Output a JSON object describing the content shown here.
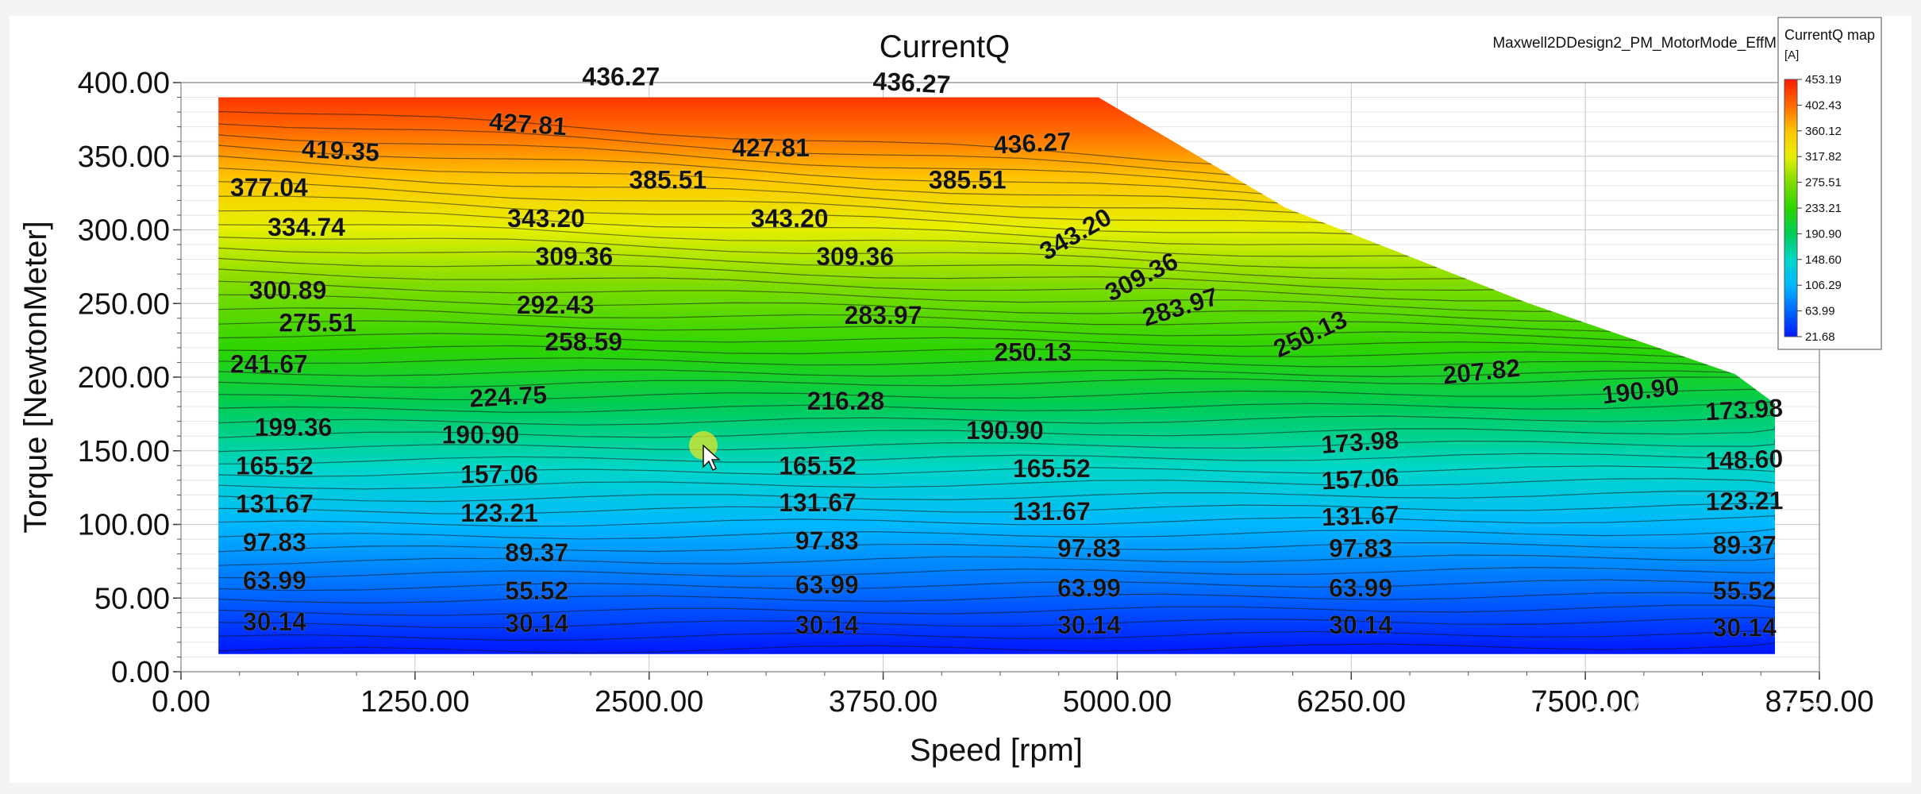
{
  "chart_data": {
    "type": "contour",
    "title": "CurrentQ",
    "design_label": "Maxwell2DDesign2_PM_MotorMode_EffM",
    "xlabel": "Speed [rpm]",
    "ylabel": "Torque [NewtonMeter]",
    "xlim": [
      0,
      8750
    ],
    "ylim": [
      0,
      400
    ],
    "x_ticks": [
      "0.00",
      "1250.00",
      "2500.00",
      "3750.00",
      "5000.00",
      "6250.00",
      "7500.00",
      "8750.00"
    ],
    "y_ticks": [
      "0.00",
      "50.00",
      "100.00",
      "150.00",
      "200.00",
      "250.00",
      "300.00",
      "350.00",
      "400.00"
    ],
    "grid": true,
    "legend": {
      "title": "CurrentQ map",
      "unit": "[A]",
      "placement": "top-right",
      "levels": [
        "453.19",
        "402.43",
        "360.12",
        "317.82",
        "275.51",
        "233.21",
        "190.90",
        "148.60",
        "106.29",
        "63.99",
        "21.68"
      ],
      "colors": [
        "#ff1a00",
        "#ff6a00",
        "#ffc400",
        "#e6f000",
        "#7fdc00",
        "#2ed400",
        "#00cc55",
        "#00d6c8",
        "#00b8ff",
        "#0066ff",
        "#0018ff"
      ]
    },
    "value_range": [
      21.68,
      453.19
    ],
    "boundary": [
      {
        "speed": 200,
        "torque": 390
      },
      {
        "speed": 4900,
        "torque": 390
      },
      {
        "speed": 5900,
        "torque": 315
      },
      {
        "speed": 7200,
        "torque": 250
      },
      {
        "speed": 8300,
        "torque": 202
      },
      {
        "speed": 9550,
        "torque": 182
      },
      {
        "speed": 9550,
        "torque": 12
      },
      {
        "speed": 200,
        "torque": 12
      }
    ],
    "contour_labels": [
      {
        "text": "436.27",
        "speed": 2350,
        "torque": 398,
        "angle": 0
      },
      {
        "text": "436.27",
        "speed": 3900,
        "torque": 394,
        "angle": 3
      },
      {
        "text": "427.81",
        "speed": 1850,
        "torque": 366,
        "angle": 4
      },
      {
        "text": "419.35",
        "speed": 850,
        "torque": 348,
        "angle": 3
      },
      {
        "text": "427.81",
        "speed": 3150,
        "torque": 350,
        "angle": 0
      },
      {
        "text": "436.27",
        "speed": 4550,
        "torque": 353,
        "angle": -3
      },
      {
        "text": "377.04",
        "speed": 470,
        "torque": 323,
        "angle": 0
      },
      {
        "text": "385.51",
        "speed": 2600,
        "torque": 328,
        "angle": 0
      },
      {
        "text": "385.51",
        "speed": 4200,
        "torque": 328,
        "angle": 0
      },
      {
        "text": "334.74",
        "speed": 670,
        "torque": 296,
        "angle": 0
      },
      {
        "text": "343.20",
        "speed": 1950,
        "torque": 302,
        "angle": 0
      },
      {
        "text": "343.20",
        "speed": 3250,
        "torque": 302,
        "angle": 0
      },
      {
        "text": "343.20",
        "speed": 4800,
        "torque": 292,
        "angle": -30
      },
      {
        "text": "309.36",
        "speed": 2100,
        "torque": 276,
        "angle": 0
      },
      {
        "text": "309.36",
        "speed": 3600,
        "torque": 276,
        "angle": 0
      },
      {
        "text": "309.36",
        "speed": 5150,
        "torque": 263,
        "angle": -27
      },
      {
        "text": "300.89",
        "speed": 570,
        "torque": 253,
        "angle": 0
      },
      {
        "text": "292.43",
        "speed": 2000,
        "torque": 243,
        "angle": 0
      },
      {
        "text": "283.97",
        "speed": 3750,
        "torque": 236,
        "angle": 0
      },
      {
        "text": "283.97",
        "speed": 5350,
        "torque": 242,
        "angle": -17
      },
      {
        "text": "275.51",
        "speed": 730,
        "torque": 231,
        "angle": 0
      },
      {
        "text": "258.59",
        "speed": 2150,
        "torque": 218,
        "angle": 0
      },
      {
        "text": "250.13",
        "speed": 4550,
        "torque": 211,
        "angle": 0
      },
      {
        "text": "250.13",
        "speed": 6050,
        "torque": 224,
        "angle": -25
      },
      {
        "text": "241.67",
        "speed": 470,
        "torque": 203,
        "angle": 0
      },
      {
        "text": "207.82",
        "speed": 6950,
        "torque": 198,
        "angle": -6
      },
      {
        "text": "190.90",
        "speed": 7800,
        "torque": 185,
        "angle": -7
      },
      {
        "text": "224.75",
        "speed": 1750,
        "torque": 181,
        "angle": -3
      },
      {
        "text": "216.28",
        "speed": 3550,
        "torque": 178,
        "angle": 0
      },
      {
        "text": "173.98",
        "speed": 8350,
        "torque": 172,
        "angle": -3
      },
      {
        "text": "199.36",
        "speed": 600,
        "torque": 160,
        "angle": 0
      },
      {
        "text": "190.90",
        "speed": 1600,
        "torque": 155,
        "angle": 0
      },
      {
        "text": "190.90",
        "speed": 4400,
        "torque": 158,
        "angle": 0
      },
      {
        "text": "173.98",
        "speed": 6300,
        "torque": 150,
        "angle": -4
      },
      {
        "text": "165.52",
        "speed": 500,
        "torque": 134,
        "angle": 0
      },
      {
        "text": "157.06",
        "speed": 1700,
        "torque": 128,
        "angle": 0
      },
      {
        "text": "165.52",
        "speed": 3400,
        "torque": 134,
        "angle": 0
      },
      {
        "text": "165.52",
        "speed": 4650,
        "torque": 132,
        "angle": 0
      },
      {
        "text": "157.06",
        "speed": 6300,
        "torque": 125,
        "angle": -3
      },
      {
        "text": "148.60",
        "speed": 8350,
        "torque": 138,
        "angle": -2
      },
      {
        "text": "131.67",
        "speed": 500,
        "torque": 108,
        "angle": 0
      },
      {
        "text": "123.21",
        "speed": 1700,
        "torque": 102,
        "angle": 0
      },
      {
        "text": "131.67",
        "speed": 3400,
        "torque": 109,
        "angle": 0
      },
      {
        "text": "131.67",
        "speed": 4650,
        "torque": 103,
        "angle": 0
      },
      {
        "text": "131.67",
        "speed": 6300,
        "torque": 100,
        "angle": -2
      },
      {
        "text": "123.21",
        "speed": 8350,
        "torque": 110,
        "angle": -1
      },
      {
        "text": "97.83",
        "speed": 500,
        "torque": 82,
        "angle": 0
      },
      {
        "text": "89.37",
        "speed": 1900,
        "torque": 75,
        "angle": 0
      },
      {
        "text": "97.83",
        "speed": 3450,
        "torque": 83,
        "angle": 0
      },
      {
        "text": "97.83",
        "speed": 4850,
        "torque": 78,
        "angle": 0
      },
      {
        "text": "97.83",
        "speed": 6300,
        "torque": 78,
        "angle": 0
      },
      {
        "text": "89.37",
        "speed": 8350,
        "torque": 80,
        "angle": 0
      },
      {
        "text": "63.99",
        "speed": 500,
        "torque": 56,
        "angle": 0
      },
      {
        "text": "55.52",
        "speed": 1900,
        "torque": 49,
        "angle": 0
      },
      {
        "text": "63.99",
        "speed": 3450,
        "torque": 53,
        "angle": 0
      },
      {
        "text": "63.99",
        "speed": 4850,
        "torque": 51,
        "angle": 0
      },
      {
        "text": "63.99",
        "speed": 6300,
        "torque": 51,
        "angle": 0
      },
      {
        "text": "55.52",
        "speed": 8350,
        "torque": 49,
        "angle": 0
      },
      {
        "text": "30.14",
        "speed": 500,
        "torque": 28,
        "angle": 0
      },
      {
        "text": "30.14",
        "speed": 1900,
        "torque": 27,
        "angle": 0
      },
      {
        "text": "30.14",
        "speed": 3450,
        "torque": 26,
        "angle": 0
      },
      {
        "text": "30.14",
        "speed": 4850,
        "torque": 26,
        "angle": 0
      },
      {
        "text": "30.14",
        "speed": 6300,
        "torque": 26,
        "angle": 0
      },
      {
        "text": "30.14",
        "speed": 8350,
        "torque": 24,
        "angle": 0
      }
    ]
  },
  "watermark": "知乎 @仿真民工"
}
